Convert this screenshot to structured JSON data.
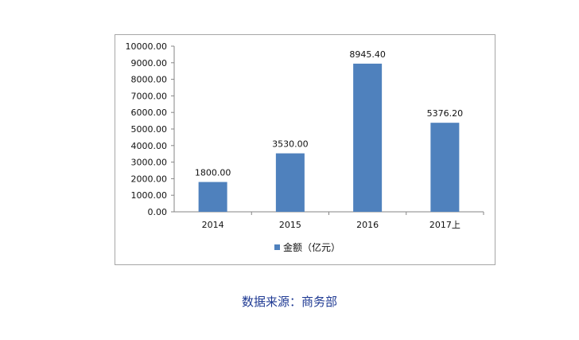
{
  "chart_data": {
    "type": "bar",
    "categories": [
      "2014",
      "2015",
      "2016",
      "2017上"
    ],
    "series": [
      {
        "name": "金额（亿元）",
        "values": [
          1800.0,
          3530.0,
          8945.4,
          5376.2
        ],
        "color": "#4f81bd"
      }
    ],
    "data_labels": [
      "1800.00",
      "3530.00",
      "8945.40",
      "5376.20"
    ],
    "ylim": [
      0,
      10000
    ],
    "y_ticks": [
      "0.00",
      "1000.00",
      "2000.00",
      "3000.00",
      "4000.00",
      "5000.00",
      "6000.00",
      "7000.00",
      "8000.00",
      "9000.00",
      "10000.00"
    ],
    "grid": false,
    "legend_position": "bottom"
  },
  "source_note": "数据来源：商务部"
}
